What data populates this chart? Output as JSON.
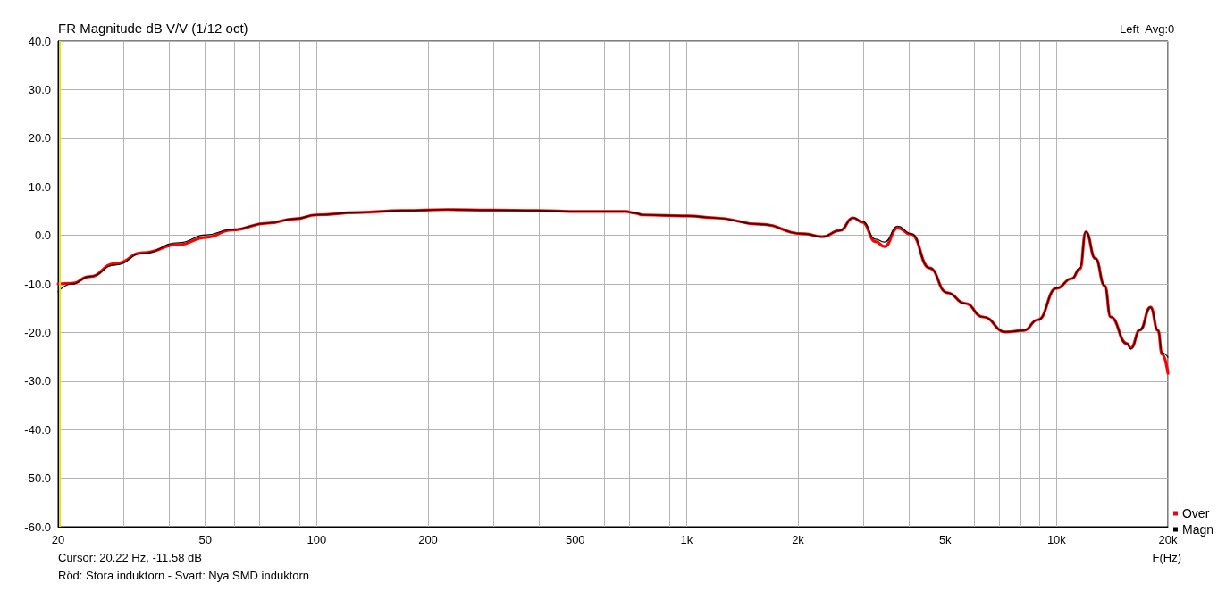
{
  "chart_data": {
    "type": "line",
    "title": "FR Magnitude dB V/V (1/12 oct)",
    "xlabel": "F(Hz)",
    "annotations": [
      "Left  Avg:0",
      "Cursor: 20.22 Hz, -11.58 dB",
      "Röd: Stora induktorn - Svart: Nya SMD induktorn"
    ],
    "x": [
      20,
      21.8,
      24.3,
      28.6,
      33.9,
      42.4,
      50.3,
      59,
      73.7,
      87.4,
      100,
      129,
      171,
      225,
      297,
      392,
      518,
      684,
      723,
      764,
      1008,
      1190,
      1573,
      2080,
      2326,
      2598,
      2820,
      2983,
      3242,
      3427,
      3720,
      4050,
      4530,
      5063,
      5660,
      6329,
      7286,
      8160,
      8900,
      10000,
      11000,
      11570,
      12000,
      12740,
      13500,
      14000,
      15500,
      15880,
      16800,
      17950,
      18800,
      19300,
      20000
    ],
    "series": [
      {
        "name": "Over",
        "color": "#ff0000",
        "values": [
          -10,
          -9.9,
          -8.5,
          -5.8,
          -3.6,
          -1.9,
          -0.4,
          1.1,
          2.5,
          3.4,
          4.2,
          4.7,
          5.1,
          5.3,
          5.2,
          5.1,
          4.9,
          4.9,
          4.6,
          4.2,
          4.0,
          3.6,
          2.3,
          0.3,
          -0.3,
          1.0,
          3.6,
          2.7,
          -1.3,
          -2.3,
          1.5,
          0.2,
          -6.7,
          -11.8,
          -14,
          -16.8,
          -19.9,
          -19.6,
          -17.4,
          -10.9,
          -8.9,
          -6.9,
          0.7,
          -4.8,
          -10.4,
          -16.8,
          -22.3,
          -23.2,
          -19.5,
          -14.8,
          -19.6,
          -24.5,
          -28.4
        ]
      },
      {
        "name": "Magn",
        "color": "#000000",
        "values": [
          -11.6,
          -10,
          -8.5,
          -6.1,
          -3.7,
          -1.5,
          0.1,
          1.2,
          2.5,
          3.4,
          4.2,
          4.7,
          5.1,
          5.3,
          5.2,
          5.1,
          4.9,
          4.9,
          4.6,
          4.2,
          4.0,
          3.6,
          2.3,
          0.3,
          -0.3,
          1.0,
          3.6,
          2.9,
          -0.8,
          -1.4,
          1.9,
          0.3,
          -6.7,
          -11.8,
          -14,
          -16.8,
          -19.9,
          -19.6,
          -17.4,
          -10.9,
          -8.9,
          -6.7,
          0.8,
          -4.8,
          -10.4,
          -16.8,
          -22.3,
          -23.4,
          -19.5,
          -14.8,
          -19.6,
          -24.2,
          -25.1
        ]
      }
    ],
    "log": "x",
    "xlim": [
      20,
      20000
    ],
    "xticks": [
      20,
      {
        "value": 30,
        "label": null
      },
      {
        "value": 40,
        "label": null
      },
      50,
      {
        "value": 60,
        "label": null
      },
      {
        "value": 70,
        "label": null
      },
      {
        "value": 80,
        "label": null
      },
      {
        "value": 90,
        "label": null
      },
      100,
      200,
      {
        "value": 300,
        "label": null
      },
      {
        "value": 400,
        "label": null
      },
      500,
      {
        "value": 600,
        "label": null
      },
      {
        "value": 700,
        "label": null
      },
      {
        "value": 800,
        "label": null
      },
      {
        "value": 900,
        "label": null
      },
      {
        "value": 1000,
        "label": "1k"
      },
      {
        "value": 2000,
        "label": "2k"
      },
      {
        "value": 3000,
        "label": null
      },
      {
        "value": 4000,
        "label": null
      },
      {
        "value": 5000,
        "label": "5k"
      },
      {
        "value": 6000,
        "label": null
      },
      {
        "value": 7000,
        "label": null
      },
      {
        "value": 8000,
        "label": null
      },
      {
        "value": 9000,
        "label": null
      },
      {
        "value": 10000,
        "label": "10k"
      },
      {
        "value": 20000,
        "label": "20k"
      }
    ],
    "ylim": [
      -60,
      40
    ],
    "yticks": [
      {
        "value": -60,
        "label": "-60.0"
      },
      {
        "value": -50,
        "label": "-50.0"
      },
      {
        "value": -40,
        "label": "-40.0"
      },
      {
        "value": -30,
        "label": "-30.0"
      },
      {
        "value": -20,
        "label": "-20.0"
      },
      {
        "value": -10,
        "label": "-10.0"
      },
      {
        "value": 0,
        "label": "0.0"
      },
      {
        "value": 10,
        "label": "10.0"
      },
      {
        "value": 20,
        "label": "20.0"
      },
      {
        "value": 30,
        "label": "30.0"
      },
      {
        "value": 40,
        "label": "40.0"
      }
    ],
    "ref_lines": [
      {
        "axis": "x",
        "value": 20.22,
        "color": "#e6e600"
      }
    ],
    "grid": true,
    "legend": "bottom right",
    "marker": "none",
    "line_style": "solid"
  }
}
